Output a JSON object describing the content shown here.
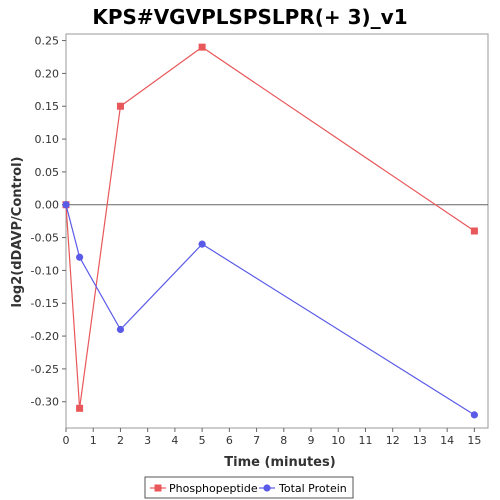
{
  "chart_data": {
    "type": "line",
    "title": "KPS#VGVPLSPSLPR(+ 3)_v1",
    "xlabel": "Time (minutes)",
    "ylabel": "log2(dDAVP/Control)",
    "xlim": [
      0,
      15.5
    ],
    "ylim": [
      -0.34,
      0.26
    ],
    "x_ticks": [
      "0",
      "1",
      "2",
      "3",
      "4",
      "5",
      "6",
      "7",
      "8",
      "9",
      "10",
      "11",
      "12",
      "13",
      "14",
      "15"
    ],
    "y_ticks": [
      "0.25",
      "0.20",
      "0.15",
      "0.10",
      "0.05",
      "0.00",
      "-0.05",
      "-0.10",
      "-0.15",
      "-0.20",
      "-0.25",
      "-0.30"
    ],
    "zero_line": true,
    "grid": false,
    "legend_position": "bottom",
    "series": [
      {
        "name": "Phosphopeptide",
        "color": "#e8575a",
        "marker": "square",
        "x": [
          0,
          0.5,
          2,
          5,
          15
        ],
        "y": [
          0.0,
          -0.31,
          0.15,
          0.24,
          -0.04
        ]
      },
      {
        "name": "Total Protein",
        "color": "#5a5ae8",
        "marker": "circle",
        "x": [
          0,
          0.5,
          2,
          5,
          15
        ],
        "y": [
          0.0,
          -0.08,
          -0.19,
          -0.06,
          -0.32
        ]
      }
    ]
  }
}
